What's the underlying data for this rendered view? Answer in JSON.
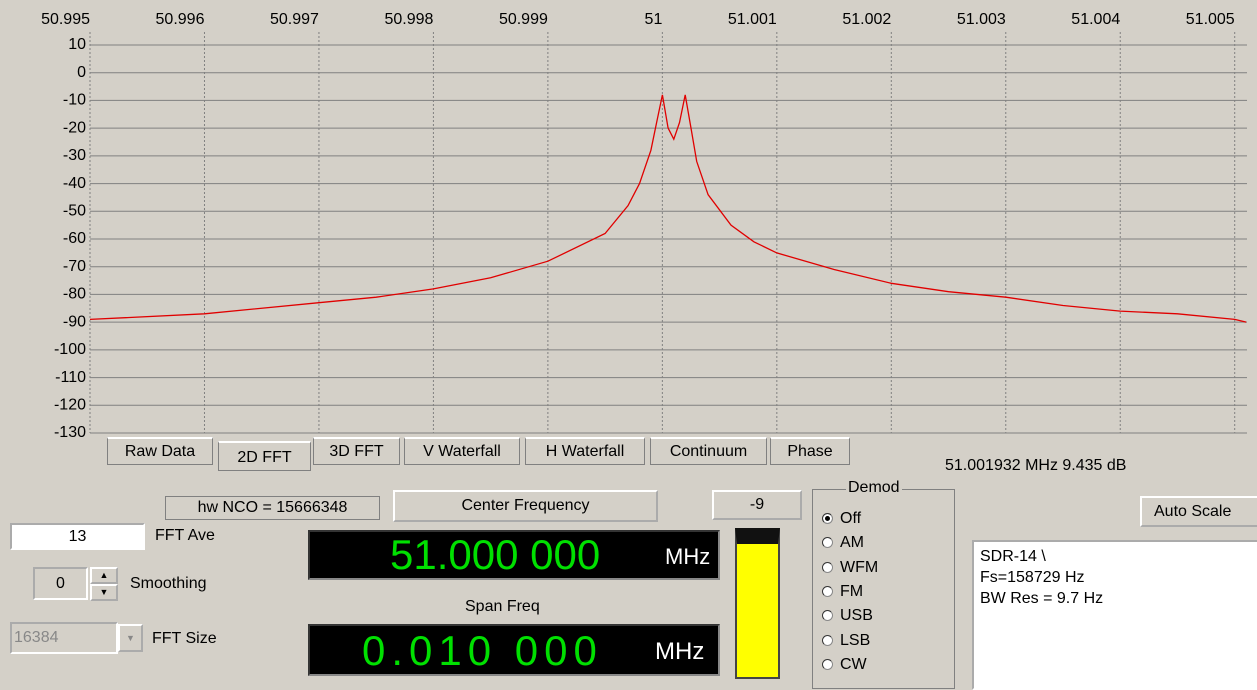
{
  "chart_data": {
    "type": "line",
    "color": "#e00000",
    "x": [
      50.995,
      50.996,
      50.997,
      50.9975,
      50.998,
      50.9985,
      50.999,
      50.9995,
      50.9997,
      50.9998,
      50.9999,
      50.99995,
      51.0,
      51.00005,
      51.0001,
      51.00015,
      51.0002,
      51.00025,
      51.0003,
      51.0004,
      51.0006,
      51.0008,
      51.001,
      51.0015,
      51.002,
      51.0025,
      51.003,
      51.0035,
      51.004,
      51.0045,
      51.005,
      51.0051
    ],
    "values": [
      -89,
      -87,
      -83,
      -81,
      -78,
      -74,
      -68,
      -58,
      -48,
      -40,
      -28,
      -18,
      -8,
      -20,
      -24,
      -18,
      -8,
      -20,
      -32,
      -44,
      -55,
      -61,
      -65,
      -71,
      -76,
      -79,
      -81,
      -84,
      -86,
      -87,
      -89,
      -90
    ],
    "xlim": [
      50.995,
      51.00502
    ],
    "xticks": [
      50.995,
      50.996,
      50.997,
      50.998,
      50.999,
      51,
      51.001,
      51.002,
      51.003,
      51.004,
      51.005
    ],
    "ylim": [
      -130,
      10
    ],
    "yticks": [
      10,
      0,
      -10,
      -20,
      -30,
      -40,
      -50,
      -60,
      -70,
      -80,
      -90,
      -100,
      -110,
      -120,
      -130
    ],
    "grid": true
  },
  "ui": {
    "tabs": [
      "Raw Data",
      "2D FFT",
      "3D FFT",
      "V Waterfall",
      "H Waterfall",
      "Continuum",
      "Phase"
    ],
    "readout": "51.001932 MHz  9.435 dB",
    "nco": "hw NCO = 15666348",
    "center_button": "Center Frequency",
    "gain_button": "-9",
    "demod": {
      "title": "Demod",
      "options": [
        "Off",
        "AM",
        "WFM",
        "FM",
        "USB",
        "LSB",
        "CW"
      ]
    },
    "auto_scale": "Auto Scale",
    "info": [
      "SDR-14  \\",
      "Fs=158729 Hz",
      "BW Res =  9.7 Hz"
    ],
    "fft_ave": {
      "value": "13",
      "label": "FFT Ave"
    },
    "smoothing": {
      "value": "0",
      "label": "Smoothing"
    },
    "fft_size": {
      "value": "16384",
      "label": "FFT Size"
    },
    "center_display": {
      "digits": "51.000 000",
      "unit": "MHz"
    },
    "span_label": "Span Freq",
    "span_display": {
      "digits": "0.010 000",
      "unit": "MHz"
    }
  }
}
